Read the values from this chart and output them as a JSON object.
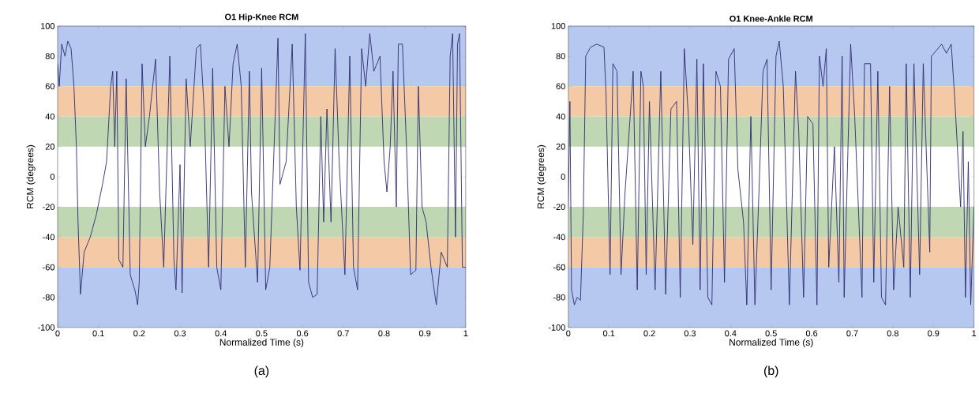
{
  "chart_data": [
    {
      "type": "line",
      "title": "O1 Hip-Knee RCM",
      "xlabel": "Normalized Time (s)",
      "ylabel": "RCM (degrees)",
      "annotations": [
        "(a)"
      ],
      "xlim": [
        0,
        1
      ],
      "ylim": [
        -100,
        100
      ],
      "xticks": [
        0,
        0.1,
        0.2,
        0.3,
        0.4,
        0.5,
        0.6,
        0.7,
        0.8,
        0.9,
        1
      ],
      "yticks": [
        -100,
        -80,
        -60,
        -40,
        -20,
        0,
        20,
        40,
        60,
        80,
        100
      ],
      "bands": [
        {
          "axis": "y",
          "from": 60,
          "to": 100,
          "color": "#b6c8f0"
        },
        {
          "axis": "y",
          "from": 40,
          "to": 60,
          "color": "#f3c9a6"
        },
        {
          "axis": "y",
          "from": 20,
          "to": 40,
          "color": "#bfd7b3"
        },
        {
          "axis": "y",
          "from": -40,
          "to": -20,
          "color": "#bfd7b3"
        },
        {
          "axis": "y",
          "from": -60,
          "to": -40,
          "color": "#f3c9a6"
        },
        {
          "axis": "y",
          "from": -100,
          "to": -60,
          "color": "#b6c8f0"
        }
      ],
      "series": [
        {
          "color": "#2e2d6e",
          "x": [
            0,
            0.004,
            0.01,
            0.018,
            0.025,
            0.033,
            0.04,
            0.046,
            0.05,
            0.056,
            0.065,
            0.08,
            0.095,
            0.11,
            0.12,
            0.13,
            0.135,
            0.14,
            0.145,
            0.15,
            0.16,
            0.168,
            0.178,
            0.19,
            0.196,
            0.2,
            0.207,
            0.215,
            0.225,
            0.24,
            0.25,
            0.26,
            0.275,
            0.285,
            0.29,
            0.3,
            0.305,
            0.315,
            0.325,
            0.34,
            0.35,
            0.36,
            0.37,
            0.38,
            0.39,
            0.4,
            0.41,
            0.42,
            0.43,
            0.44,
            0.45,
            0.46,
            0.47,
            0.475,
            0.49,
            0.5,
            0.51,
            0.52,
            0.54,
            0.545,
            0.56,
            0.575,
            0.585,
            0.594,
            0.607,
            0.615,
            0.625,
            0.636,
            0.645,
            0.652,
            0.66,
            0.67,
            0.68,
            0.69,
            0.704,
            0.716,
            0.725,
            0.735,
            0.745,
            0.755,
            0.765,
            0.775,
            0.79,
            0.8,
            0.807,
            0.815,
            0.822,
            0.83,
            0.835,
            0.845,
            0.855,
            0.865,
            0.878,
            0.884,
            0.893,
            0.903,
            0.915,
            0.928,
            0.94,
            0.955,
            0.962,
            0.968,
            0.975,
            0.98,
            0.985,
            0.992,
            1
          ],
          "values": [
            75,
            60,
            88,
            80,
            90,
            85,
            60,
            20,
            -30,
            -78,
            -50,
            -40,
            -25,
            -5,
            10,
            60,
            70,
            20,
            70,
            -55,
            -60,
            65,
            -65,
            -76,
            -85,
            -70,
            75,
            20,
            40,
            78,
            -10,
            -60,
            80,
            -55,
            -75,
            8,
            -77,
            65,
            20,
            85,
            88,
            40,
            -60,
            72,
            -60,
            -75,
            60,
            20,
            75,
            88,
            60,
            -60,
            70,
            -10,
            -70,
            72,
            -75,
            -60,
            92,
            -5,
            10,
            88,
            -20,
            -62,
            95,
            -70,
            -80,
            -78,
            40,
            -30,
            45,
            -30,
            85,
            10,
            -65,
            80,
            -60,
            -75,
            85,
            60,
            95,
            70,
            80,
            10,
            -10,
            20,
            70,
            -20,
            88,
            88,
            20,
            -65,
            -62,
            60,
            -20,
            -30,
            -60,
            -85,
            -50,
            -60,
            80,
            95,
            -40,
            88,
            95,
            -60,
            -60
          ]
        }
      ]
    },
    {
      "type": "line",
      "title": "O1 Knee-Ankle RCM",
      "xlabel": "Normalized Time (s)",
      "ylabel": "RCM (degrees)",
      "annotations": [
        "(b)"
      ],
      "xlim": [
        0,
        1
      ],
      "ylim": [
        -100,
        100
      ],
      "xticks": [
        0,
        0.1,
        0.2,
        0.3,
        0.4,
        0.5,
        0.6,
        0.7,
        0.8,
        0.9,
        1
      ],
      "yticks": [
        -100,
        -80,
        -60,
        -40,
        -20,
        0,
        20,
        40,
        60,
        80,
        100
      ],
      "bands": [
        {
          "axis": "y",
          "from": 60,
          "to": 100,
          "color": "#b6c8f0"
        },
        {
          "axis": "y",
          "from": 40,
          "to": 60,
          "color": "#f3c9a6"
        },
        {
          "axis": "y",
          "from": 20,
          "to": 40,
          "color": "#bfd7b3"
        },
        {
          "axis": "y",
          "from": -40,
          "to": -20,
          "color": "#bfd7b3"
        },
        {
          "axis": "y",
          "from": -60,
          "to": -40,
          "color": "#f3c9a6"
        },
        {
          "axis": "y",
          "from": -100,
          "to": -60,
          "color": "#b6c8f0"
        }
      ],
      "series": [
        {
          "color": "#2e2d6e",
          "x": [
            0,
            0.004,
            0.008,
            0.015,
            0.022,
            0.03,
            0.037,
            0.043,
            0.055,
            0.07,
            0.088,
            0.093,
            0.103,
            0.11,
            0.12,
            0.13,
            0.14,
            0.16,
            0.17,
            0.179,
            0.185,
            0.192,
            0.2,
            0.214,
            0.228,
            0.24,
            0.253,
            0.267,
            0.276,
            0.286,
            0.296,
            0.307,
            0.317,
            0.325,
            0.333,
            0.344,
            0.354,
            0.364,
            0.375,
            0.385,
            0.395,
            0.409,
            0.418,
            0.432,
            0.44,
            0.45,
            0.46,
            0.47,
            0.48,
            0.49,
            0.5,
            0.512,
            0.52,
            0.53,
            0.545,
            0.56,
            0.568,
            0.58,
            0.59,
            0.603,
            0.613,
            0.619,
            0.628,
            0.636,
            0.642,
            0.656,
            0.667,
            0.675,
            0.68,
            0.696,
            0.706,
            0.724,
            0.73,
            0.745,
            0.753,
            0.763,
            0.772,
            0.782,
            0.792,
            0.802,
            0.813,
            0.827,
            0.833,
            0.843,
            0.852,
            0.866,
            0.875,
            0.891,
            0.895,
            0.908,
            0.92,
            0.932,
            0.944,
            0.953,
            0.967,
            0.973,
            0.979,
            0.986,
            0.992,
            1
          ],
          "values": [
            -20,
            50,
            -75,
            -85,
            -80,
            -82,
            -25,
            80,
            86,
            88,
            86,
            55,
            -65,
            75,
            70,
            -65,
            -10,
            70,
            -75,
            70,
            60,
            -65,
            50,
            -75,
            70,
            -78,
            45,
            50,
            -80,
            85,
            40,
            -45,
            78,
            -75,
            75,
            -80,
            -85,
            70,
            60,
            -70,
            78,
            85,
            5,
            -30,
            -85,
            40,
            -85,
            -10,
            70,
            78,
            -75,
            80,
            90,
            60,
            -85,
            70,
            30,
            -80,
            40,
            35,
            -85,
            80,
            60,
            85,
            -60,
            20,
            -70,
            80,
            -80,
            88,
            40,
            -80,
            75,
            75,
            -70,
            70,
            -80,
            -85,
            60,
            -75,
            -20,
            -60,
            75,
            -80,
            75,
            -65,
            75,
            -50,
            80,
            84,
            88,
            82,
            88,
            50,
            -20,
            30,
            -80,
            10,
            -85,
            -20
          ]
        }
      ]
    }
  ]
}
